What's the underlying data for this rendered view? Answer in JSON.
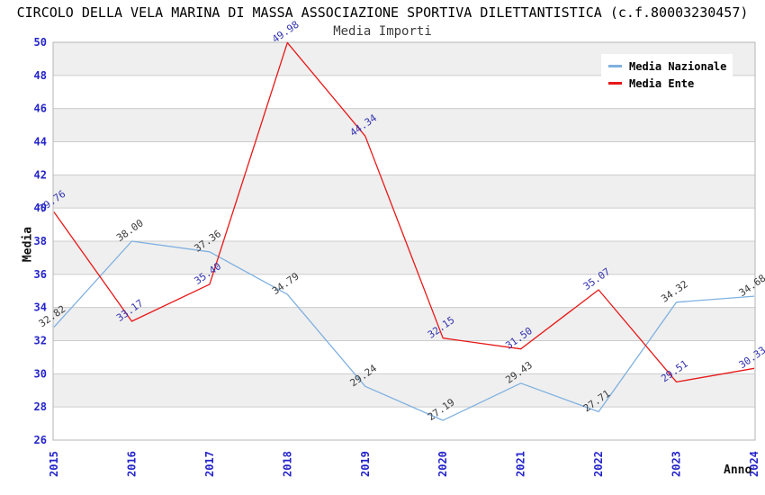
{
  "header": {
    "title": "CIRCOLO DELLA VELA MARINA DI MASSA ASSOCIAZIONE SPORTIVA DILETTANTISTICA (c.f.80003230457)",
    "subtitle": "Media Importi"
  },
  "legend": {
    "items": [
      {
        "label": "Media Nazionale",
        "color": "#7fb0e0"
      },
      {
        "label": "Media Ente",
        "color": "#e81717"
      }
    ]
  },
  "axes": {
    "y_label": "Media",
    "x_label": "Anno",
    "tick_color": "#2424cc",
    "y_tick_step": 2
  },
  "chart_data": {
    "type": "line",
    "title": "Media Importi",
    "xlabel": "Anno",
    "ylabel": "Media",
    "ylim": [
      26,
      50
    ],
    "grid": true,
    "legend_position": "top-right",
    "band_fill": "#efefef",
    "gridline_color": "#cccccc",
    "border_color": "#b4b4b4",
    "categories": [
      "2015",
      "2016",
      "2017",
      "2018",
      "2019",
      "2020",
      "2021",
      "2022",
      "2023",
      "2024"
    ],
    "series": [
      {
        "name": "Media Nazionale",
        "color": "#7fb0e0",
        "label_color": "#3a3a3a",
        "values": [
          32.82,
          38.0,
          37.36,
          34.79,
          29.24,
          27.19,
          29.43,
          27.71,
          34.32,
          34.68
        ]
      },
      {
        "name": "Media Ente",
        "color": "#e81717",
        "label_color": "#3232b0",
        "values": [
          39.76,
          33.17,
          35.4,
          49.98,
          44.34,
          32.15,
          31.5,
          35.07,
          29.51,
          30.33
        ]
      }
    ]
  }
}
